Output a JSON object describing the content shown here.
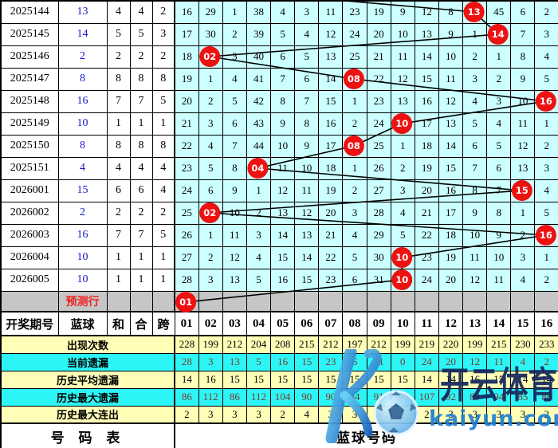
{
  "header": {
    "period_label": "开奖期号",
    "blue_label": "蓝球",
    "sum_label": "和",
    "combo_label": "合",
    "span_label": "跨",
    "columns": [
      "01",
      "02",
      "03",
      "04",
      "05",
      "06",
      "07",
      "08",
      "09",
      "10",
      "11",
      "12",
      "13",
      "14",
      "15",
      "16"
    ]
  },
  "chart_data": {
    "type": "table",
    "ball_columns_range": [
      1,
      16
    ],
    "rows": [
      {
        "period": "2025144",
        "blue": "13",
        "sum": "4",
        "combo": "4",
        "span": "2",
        "ball_col": 13,
        "ball_text": "13",
        "cells": [
          "16",
          "29",
          "1",
          "38",
          "4",
          "3",
          "11",
          "23",
          "19",
          "9",
          "12",
          "8",
          "",
          "45",
          "6",
          "2"
        ]
      },
      {
        "period": "2025145",
        "blue": "14",
        "sum": "5",
        "combo": "5",
        "span": "3",
        "ball_col": 14,
        "ball_text": "14",
        "cells": [
          "17",
          "30",
          "2",
          "39",
          "5",
          "4",
          "12",
          "24",
          "20",
          "10",
          "13",
          "9",
          "1",
          "",
          "7",
          "3"
        ]
      },
      {
        "period": "2025146",
        "blue": "2",
        "sum": "2",
        "combo": "2",
        "span": "2",
        "ball_col": 2,
        "ball_text": "02",
        "cells": [
          "18",
          "",
          "3",
          "40",
          "6",
          "5",
          "13",
          "25",
          "21",
          "11",
          "14",
          "10",
          "2",
          "1",
          "8",
          "4"
        ]
      },
      {
        "period": "2025147",
        "blue": "8",
        "sum": "8",
        "combo": "8",
        "span": "8",
        "ball_col": 8,
        "ball_text": "08",
        "cells": [
          "19",
          "1",
          "4",
          "41",
          "7",
          "6",
          "14",
          "",
          "22",
          "12",
          "15",
          "11",
          "3",
          "2",
          "9",
          "5"
        ]
      },
      {
        "period": "2025148",
        "blue": "16",
        "sum": "7",
        "combo": "7",
        "span": "5",
        "ball_col": 16,
        "ball_text": "16",
        "cells": [
          "20",
          "2",
          "5",
          "42",
          "8",
          "7",
          "15",
          "1",
          "23",
          "13",
          "16",
          "12",
          "4",
          "3",
          "10",
          ""
        ]
      },
      {
        "period": "2025149",
        "blue": "10",
        "sum": "1",
        "combo": "1",
        "span": "1",
        "ball_col": 10,
        "ball_text": "10",
        "cells": [
          "21",
          "3",
          "6",
          "43",
          "9",
          "8",
          "16",
          "2",
          "24",
          "",
          "17",
          "13",
          "5",
          "4",
          "11",
          "1"
        ]
      },
      {
        "period": "2025150",
        "blue": "8",
        "sum": "8",
        "combo": "8",
        "span": "8",
        "ball_col": 8,
        "ball_text": "08",
        "cells": [
          "22",
          "4",
          "7",
          "44",
          "10",
          "9",
          "17",
          "",
          "25",
          "1",
          "18",
          "14",
          "6",
          "5",
          "12",
          "2"
        ]
      },
      {
        "period": "2025151",
        "blue": "4",
        "sum": "4",
        "combo": "4",
        "span": "4",
        "ball_col": 4,
        "ball_text": "04",
        "cells": [
          "23",
          "5",
          "8",
          "",
          "11",
          "10",
          "18",
          "1",
          "26",
          "2",
          "19",
          "15",
          "7",
          "6",
          "13",
          "3"
        ]
      },
      {
        "period": "2026001",
        "blue": "15",
        "sum": "6",
        "combo": "6",
        "span": "4",
        "ball_col": 15,
        "ball_text": "15",
        "cells": [
          "24",
          "6",
          "9",
          "1",
          "12",
          "11",
          "19",
          "2",
          "27",
          "3",
          "20",
          "16",
          "8",
          "7",
          "",
          "4"
        ]
      },
      {
        "period": "2026002",
        "blue": "2",
        "sum": "2",
        "combo": "2",
        "span": "2",
        "ball_col": 2,
        "ball_text": "02",
        "cells": [
          "25",
          "",
          "10",
          "2",
          "13",
          "12",
          "20",
          "3",
          "28",
          "4",
          "21",
          "17",
          "9",
          "8",
          "1",
          "5"
        ]
      },
      {
        "period": "2026003",
        "blue": "16",
        "sum": "7",
        "combo": "7",
        "span": "5",
        "ball_col": 16,
        "ball_text": "16",
        "cells": [
          "26",
          "1",
          "11",
          "3",
          "14",
          "13",
          "21",
          "4",
          "29",
          "5",
          "22",
          "18",
          "10",
          "9",
          "2",
          ""
        ]
      },
      {
        "period": "2026004",
        "blue": "10",
        "sum": "1",
        "combo": "1",
        "span": "1",
        "ball_col": 10,
        "ball_text": "10",
        "cells": [
          "27",
          "2",
          "12",
          "4",
          "15",
          "14",
          "22",
          "5",
          "30",
          "",
          "23",
          "19",
          "11",
          "10",
          "3",
          "1"
        ]
      },
      {
        "period": "2026005",
        "blue": "10",
        "sum": "1",
        "combo": "1",
        "span": "1",
        "ball_col": 10,
        "ball_text": "10",
        "cells": [
          "28",
          "3",
          "13",
          "5",
          "16",
          "15",
          "23",
          "6",
          "31",
          "",
          "24",
          "20",
          "12",
          "11",
          "4",
          "2"
        ]
      }
    ],
    "prediction": {
      "label": "预测行",
      "ball_col": 1,
      "ball_text": "01"
    },
    "lead_in_point": {
      "row": -0.55,
      "col": 7.1
    },
    "stats_rows": [
      {
        "label": "出现次数",
        "scheme": "yellow",
        "values": [
          "228",
          "199",
          "212",
          "204",
          "208",
          "215",
          "212",
          "197",
          "212",
          "199",
          "219",
          "220",
          "199",
          "215",
          "230",
          "233"
        ]
      },
      {
        "label": "当前遗漏",
        "scheme": "cyan",
        "values": [
          "28",
          "3",
          "13",
          "5",
          "16",
          "15",
          "23",
          "6",
          "31",
          "0",
          "24",
          "20",
          "12",
          "11",
          "4",
          "2"
        ]
      },
      {
        "label": "历史平均遗漏",
        "scheme": "yellow",
        "values": [
          "14",
          "16",
          "15",
          "15",
          "15",
          "15",
          "15",
          "15",
          "15",
          "15",
          "14",
          "14",
          "16",
          "15",
          "14",
          "14"
        ]
      },
      {
        "label": "历史最大遗漏",
        "scheme": "cyan",
        "values": [
          "86",
          "112",
          "86",
          "112",
          "104",
          "90",
          "90",
          "84",
          "91",
          "90",
          "107",
          "92",
          "89",
          "94",
          "85",
          "88"
        ]
      },
      {
        "label": "历史最大连出",
        "scheme": "yellow",
        "values": [
          "2",
          "3",
          "3",
          "3",
          "2",
          "4",
          "3",
          "3",
          "3",
          "2",
          "2",
          "3",
          "3",
          "3",
          "3",
          "2"
        ]
      }
    ]
  },
  "footer": {
    "left": "号 码 表",
    "right": "蓝球号码"
  },
  "watermark": {
    "logo_letter": "K",
    "brand": "开云体育",
    "domain": "kaiyun.com"
  },
  "colors": {
    "grid_bg": "#ccffff",
    "stat_yellow_bg": "#ffffb8",
    "stat_cyan_bg": "#2ef5f5",
    "prediction_bg": "#c6c6c6",
    "ball_red": "#ee1111",
    "blue_value_text": "#1717cc",
    "prediction_text_red": "#ee2222",
    "cyan_row_text": "#7a3a2a",
    "line_black": "#000000",
    "watermark_navy": "#15275e",
    "watermark_blue": "#1f7fd4"
  }
}
